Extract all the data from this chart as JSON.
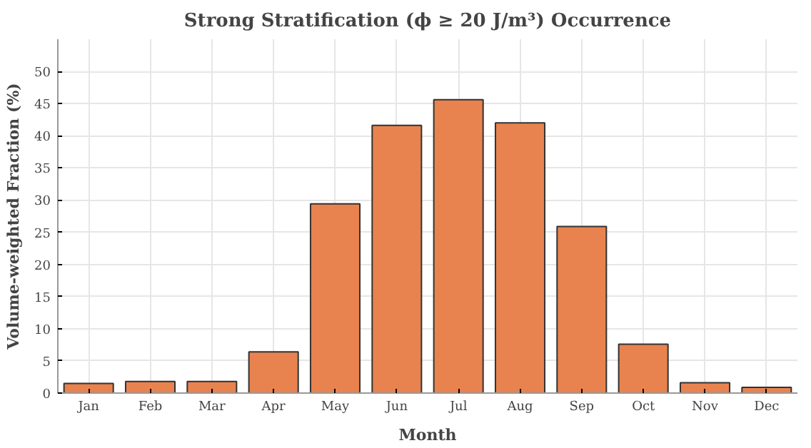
{
  "chart_data": {
    "type": "bar",
    "title": "Strong Stratification (ϕ ≥ 20 J/m³) Occurrence",
    "xlabel": "Month",
    "ylabel": "Volume-weighted Fraction (%)",
    "categories": [
      "Jan",
      "Feb",
      "Mar",
      "Apr",
      "May",
      "Jun",
      "Jul",
      "Aug",
      "Sep",
      "Oct",
      "Nov",
      "Dec"
    ],
    "values": [
      1.5,
      1.8,
      1.8,
      6.4,
      29.4,
      41.6,
      45.6,
      42.0,
      25.9,
      7.6,
      1.6,
      0.9
    ],
    "color": "#e8834f",
    "ylim": [
      0,
      55
    ],
    "yticks": [
      0,
      5,
      10,
      15,
      20,
      25,
      30,
      35,
      40,
      45,
      50
    ],
    "grid": true
  }
}
